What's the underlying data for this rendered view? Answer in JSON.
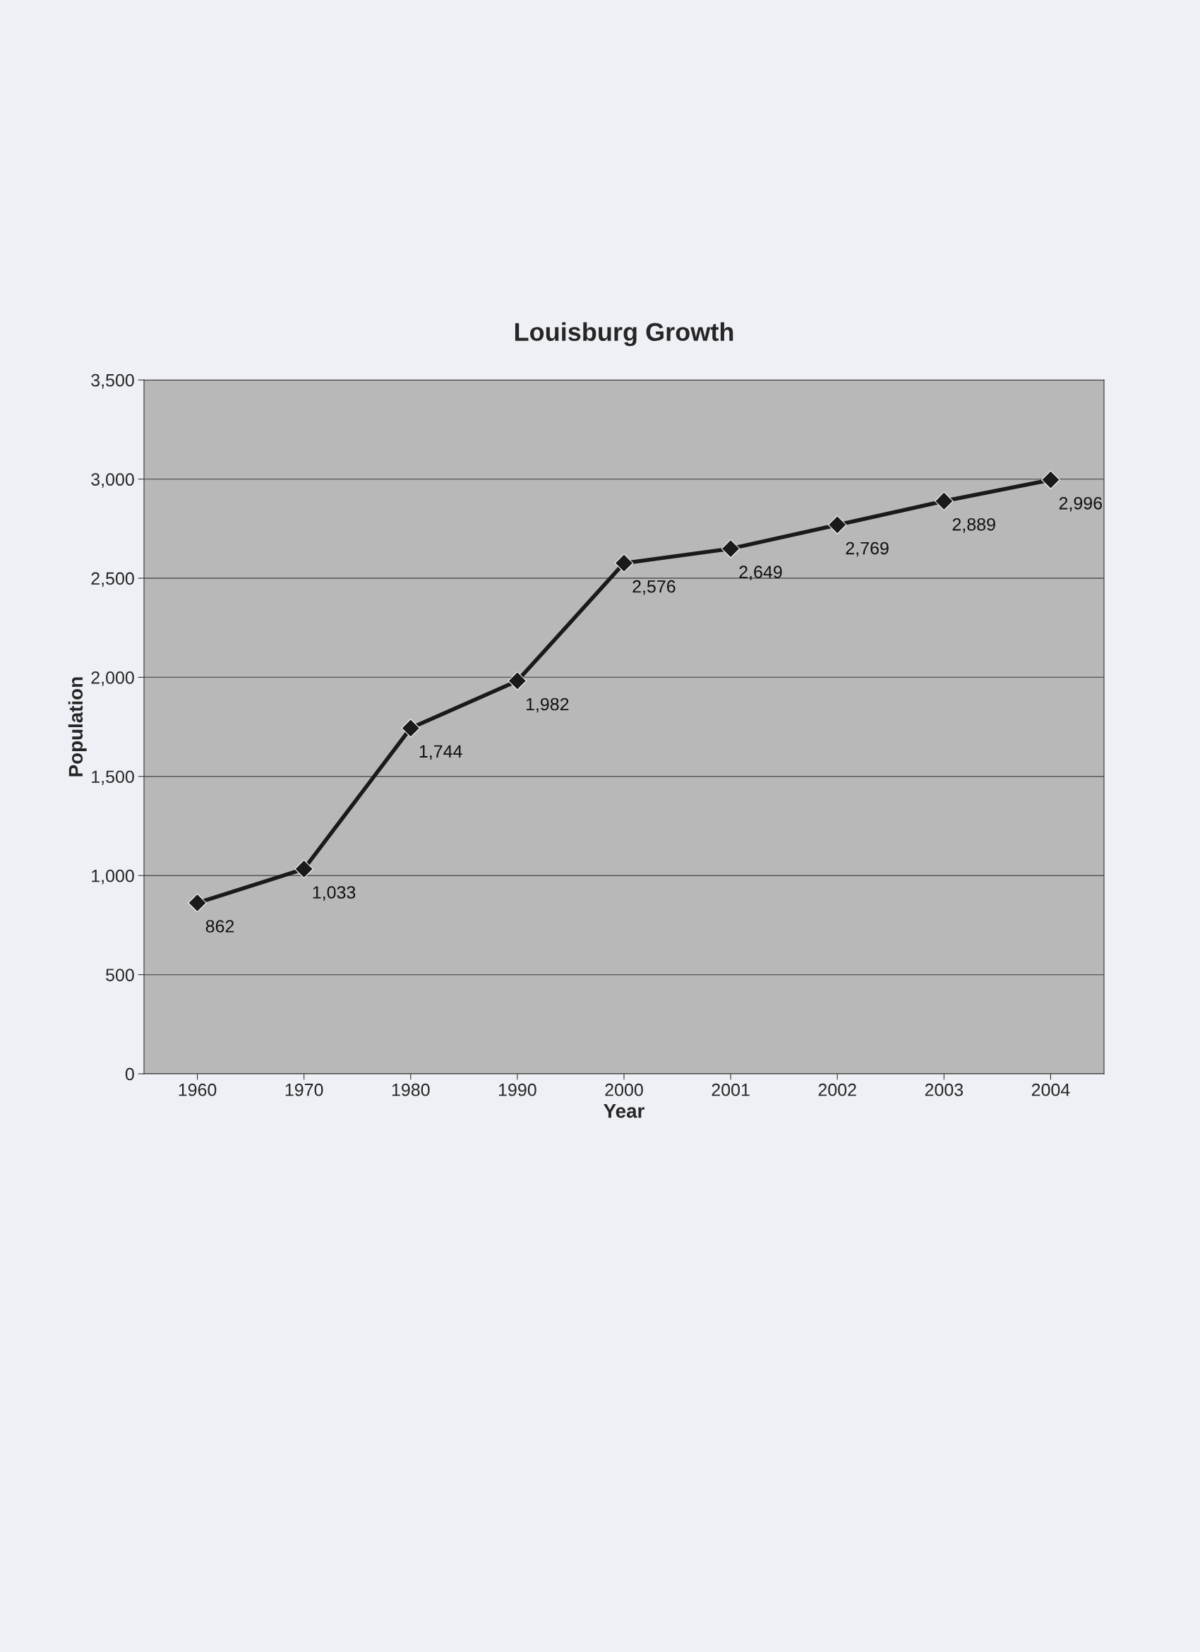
{
  "chart_data": {
    "type": "line",
    "title": "Louisburg Growth",
    "xlabel": "Year",
    "ylabel": "Population",
    "categories": [
      "1960",
      "1970",
      "1980",
      "1990",
      "2000",
      "2001",
      "2002",
      "2003",
      "2004"
    ],
    "series": [
      {
        "color": "#1a1a1a",
        "values": [
          862,
          1033,
          1744,
          1982,
          2576,
          2649,
          2769,
          2889,
          2996
        ],
        "value_labels": [
          "862",
          "1,033",
          "1,744",
          "1,982",
          "2,576",
          "2,649",
          "2,769",
          "2,889",
          "2,996"
        ]
      }
    ],
    "ylim": [
      0,
      3500
    ],
    "yticks": [
      0,
      500,
      {
        "value": 1000,
        "label": "1,000"
      },
      {
        "value": 1500,
        "label": "1,500"
      },
      {
        "value": 2000,
        "label": "2,000"
      },
      {
        "value": 2500,
        "label": "2,500"
      },
      {
        "value": 3000,
        "label": "3,000"
      },
      {
        "value": 3500,
        "label": "3,500"
      }
    ],
    "grid": "y",
    "marker": "diamond",
    "line_style": "solid"
  }
}
